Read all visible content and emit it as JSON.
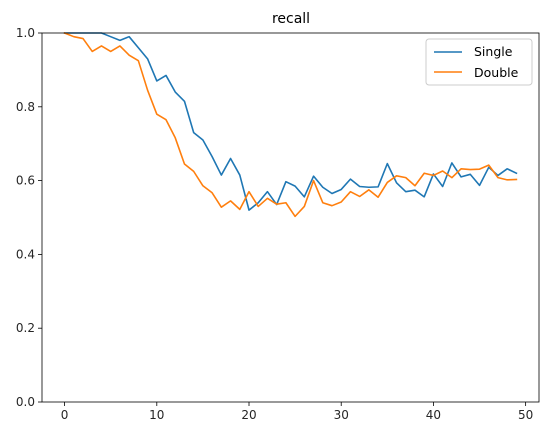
{
  "chart_data": {
    "type": "line",
    "title": "recall",
    "xlabel": "",
    "ylabel": "",
    "xlim": [
      -2.45,
      51.45
    ],
    "ylim": [
      0.0,
      1.0
    ],
    "xticks": [
      0,
      10,
      20,
      30,
      40,
      50
    ],
    "yticks": [
      0.0,
      0.2,
      0.4,
      0.6,
      0.8,
      1.0
    ],
    "xtick_labels": [
      "0",
      "10",
      "20",
      "30",
      "40",
      "50"
    ],
    "ytick_labels": [
      "0.0",
      "0.2",
      "0.4",
      "0.6",
      "0.8",
      "1.0"
    ],
    "grid": false,
    "legend": "top-right",
    "x": [
      0,
      1,
      2,
      3,
      4,
      5,
      6,
      7,
      8,
      9,
      10,
      11,
      12,
      13,
      14,
      15,
      16,
      17,
      18,
      19,
      20,
      21,
      22,
      23,
      24,
      25,
      26,
      27,
      28,
      29,
      30,
      31,
      32,
      33,
      34,
      35,
      36,
      37,
      38,
      39,
      40,
      41,
      42,
      43,
      44,
      45,
      46,
      47,
      48,
      49
    ],
    "series": [
      {
        "name": "Single",
        "color": "#1f77b4",
        "values": [
          1.0,
          1.0,
          1.0,
          1.0,
          1.0,
          0.99,
          0.98,
          0.99,
          0.96,
          0.93,
          0.87,
          0.885,
          0.84,
          0.815,
          0.73,
          0.71,
          0.665,
          0.615,
          0.66,
          0.615,
          0.52,
          0.54,
          0.57,
          0.535,
          0.597,
          0.585,
          0.556,
          0.612,
          0.582,
          0.565,
          0.576,
          0.604,
          0.584,
          0.582,
          0.583,
          0.646,
          0.594,
          0.57,
          0.574,
          0.556,
          0.618,
          0.584,
          0.648,
          0.61,
          0.617,
          0.587,
          0.636,
          0.614,
          0.632,
          0.62
        ]
      },
      {
        "name": "Double",
        "color": "#ff7f0e",
        "values": [
          1.0,
          0.99,
          0.985,
          0.95,
          0.965,
          0.95,
          0.965,
          0.94,
          0.925,
          0.845,
          0.78,
          0.765,
          0.716,
          0.645,
          0.625,
          0.586,
          0.567,
          0.528,
          0.545,
          0.522,
          0.57,
          0.53,
          0.552,
          0.536,
          0.54,
          0.503,
          0.53,
          0.6,
          0.54,
          0.532,
          0.542,
          0.57,
          0.557,
          0.575,
          0.555,
          0.595,
          0.613,
          0.608,
          0.586,
          0.62,
          0.614,
          0.626,
          0.608,
          0.632,
          0.63,
          0.631,
          0.642,
          0.608,
          0.602,
          0.603
        ]
      }
    ]
  }
}
